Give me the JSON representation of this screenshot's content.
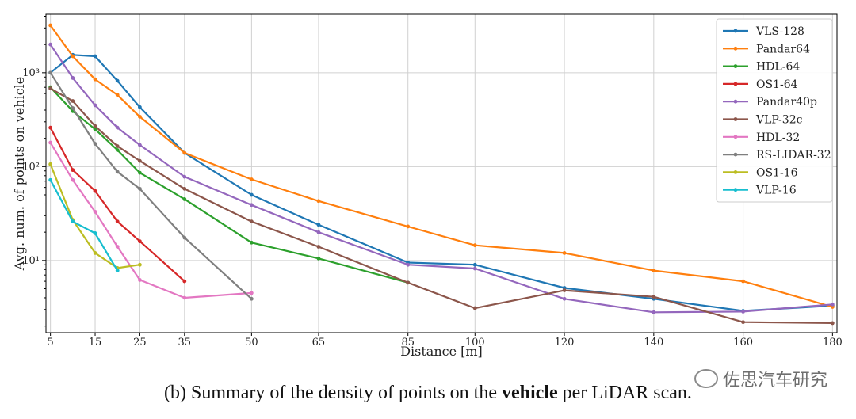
{
  "chart_data": {
    "type": "line",
    "xlabel": "Distance [m]",
    "ylabel": "Avg. num. of points on vehicle",
    "yscale": "log",
    "xlim": [
      4,
      181
    ],
    "ylim": [
      1.7,
      4200
    ],
    "x_ticks": [
      5,
      15,
      25,
      35,
      50,
      65,
      85,
      100,
      120,
      140,
      160,
      180
    ],
    "y_ticks": [
      {
        "value": 10,
        "label": "10¹"
      },
      {
        "value": 100,
        "label": "10²"
      },
      {
        "value": 1000,
        "label": "10³"
      }
    ],
    "grid": true,
    "legend_position": "top-right",
    "series": [
      {
        "name": "VLS-128",
        "color": "#1f77b4",
        "x": [
          5,
          10,
          15,
          20,
          25,
          35,
          50,
          65,
          85,
          100,
          120,
          140,
          160,
          180
        ],
        "y": [
          1000,
          1550,
          1500,
          820,
          430,
          140,
          50,
          24,
          9.5,
          9,
          5.1,
          3.9,
          2.9,
          3.3
        ]
      },
      {
        "name": "Pandar64",
        "color": "#ff7f0e",
        "x": [
          5,
          10,
          15,
          20,
          25,
          35,
          50,
          65,
          85,
          100,
          120,
          140,
          160,
          180
        ],
        "y": [
          3200,
          1500,
          850,
          580,
          340,
          140,
          73,
          43,
          23,
          14.5,
          12,
          7.8,
          6,
          3.2
        ]
      },
      {
        "name": "HDL-64",
        "color": "#2ca02c",
        "x": [
          5,
          10,
          15,
          20,
          25,
          35,
          50,
          65,
          85
        ],
        "y": [
          700,
          390,
          250,
          150,
          86,
          45,
          15.5,
          10.5,
          5.8
        ]
      },
      {
        "name": "OS1-64",
        "color": "#d62728",
        "x": [
          5,
          10,
          15,
          20,
          25,
          35
        ],
        "y": [
          260,
          92,
          55,
          26,
          16,
          6
        ]
      },
      {
        "name": "Pandar40p",
        "color": "#9467bd",
        "x": [
          5,
          10,
          15,
          20,
          25,
          35,
          50,
          65,
          85,
          100,
          120,
          140,
          160,
          180
        ],
        "y": [
          2000,
          880,
          450,
          260,
          170,
          78,
          39,
          20,
          9,
          8.2,
          3.9,
          2.8,
          2.85,
          3.4
        ]
      },
      {
        "name": "VLP-32c",
        "color": "#8c564b",
        "x": [
          5,
          10,
          15,
          20,
          25,
          35,
          50,
          65,
          85,
          100,
          120,
          140,
          160,
          180
        ],
        "y": [
          680,
          500,
          270,
          165,
          115,
          58,
          26,
          14,
          5.8,
          3.1,
          4.8,
          4.1,
          2.2,
          2.15
        ]
      },
      {
        "name": "HDL-32",
        "color": "#e377c2",
        "x": [
          5,
          10,
          15,
          20,
          25,
          35,
          50
        ],
        "y": [
          180,
          72,
          33,
          14,
          6.2,
          4,
          4.5
        ]
      },
      {
        "name": "RS-LIDAR-32",
        "color": "#7f7f7f",
        "x": [
          5,
          10,
          15,
          20,
          25,
          35,
          50
        ],
        "y": [
          1000,
          420,
          175,
          88,
          58,
          17.5,
          3.9
        ]
      },
      {
        "name": "OS1-16",
        "color": "#bcbd22",
        "x": [
          5,
          10,
          15,
          20,
          25
        ],
        "y": [
          106,
          27,
          12,
          8.3,
          9
        ]
      },
      {
        "name": "VLP-16",
        "color": "#17becf",
        "x": [
          5,
          10,
          15,
          20
        ],
        "y": [
          72,
          26,
          19.5,
          7.8
        ]
      }
    ]
  },
  "caption": {
    "prefix": "(b) Summary of the density of points on the ",
    "bold": "vehicle",
    "suffix": " per LiDAR scan."
  },
  "watermark": "佐思汽车研究"
}
